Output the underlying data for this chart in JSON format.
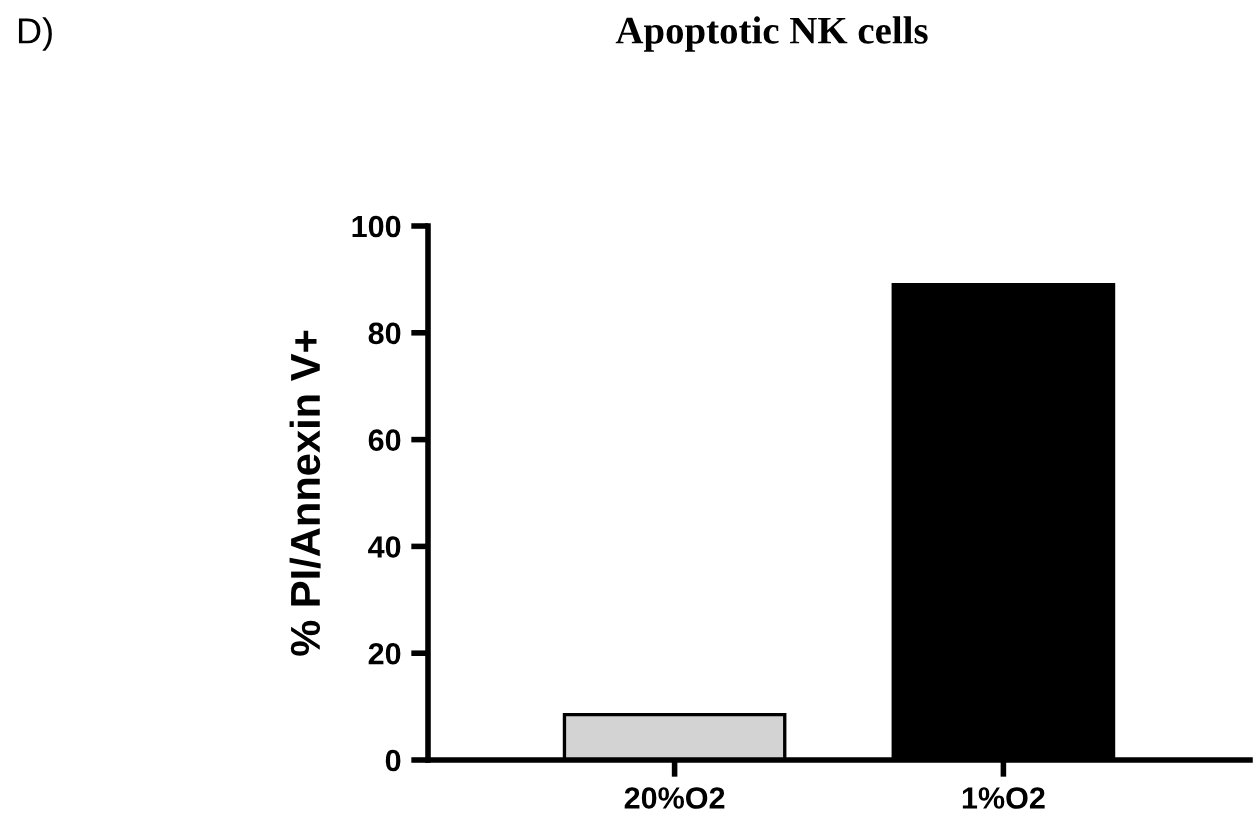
{
  "chart_data": {
    "type": "bar",
    "title": "Apoptotic NK cells",
    "ylabel": "% PI/Annexin V+",
    "categories": [
      "20%O2",
      "1%O2"
    ],
    "values": [
      8.5,
      89
    ],
    "colors": [
      "#d3d3d3",
      "#000000"
    ],
    "ylim": [
      0,
      100
    ],
    "yticks": [
      0,
      20,
      40,
      60,
      80,
      100
    ],
    "grid": false,
    "annotations": [
      "D)"
    ]
  }
}
